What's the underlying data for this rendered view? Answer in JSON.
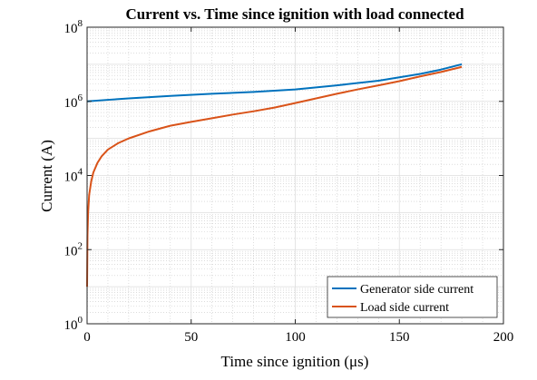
{
  "chart_data": {
    "type": "line",
    "title": "Current vs. Time since ignition with load connected",
    "xlabel": "Time since ignition (μs)",
    "ylabel": "Current (A)",
    "xlim": [
      0,
      200
    ],
    "ylim_log10": [
      0,
      8
    ],
    "y_scale": "log",
    "grid": true,
    "minor_grid": true,
    "legend_position": "bottom-right",
    "x_ticks": [
      "0",
      "50",
      "100",
      "150",
      "200"
    ],
    "y_ticks": [
      {
        "base": "10",
        "exp": "0"
      },
      {
        "base": "10",
        "exp": "2"
      },
      {
        "base": "10",
        "exp": "4"
      },
      {
        "base": "10",
        "exp": "6"
      },
      {
        "base": "10",
        "exp": "8"
      }
    ],
    "series": [
      {
        "name": "Generator side current",
        "color": "#0072BD",
        "x": [
          0,
          10,
          20,
          40,
          60,
          80,
          100,
          120,
          140,
          160,
          170,
          180
        ],
        "y": [
          1000000,
          1100000,
          1200000,
          1400000,
          1600000,
          1800000,
          2100000,
          2700000,
          3600000,
          5500000,
          7200000,
          10000000
        ]
      },
      {
        "name": "Load side current",
        "color": "#D95319",
        "x": [
          0,
          0.2,
          0.5,
          1,
          2,
          3,
          5,
          7,
          10,
          15,
          20,
          30,
          40,
          50,
          60,
          70,
          80,
          90,
          100,
          110,
          120,
          130,
          140,
          150,
          160,
          170,
          180
        ],
        "y": [
          10,
          250,
          1000,
          3000,
          7000,
          12000,
          22000,
          33000,
          50000,
          75000,
          100000,
          155000,
          220000,
          280000,
          350000,
          440000,
          540000,
          680000,
          900000,
          1200000,
          1600000,
          2100000,
          2700000,
          3500000,
          4700000,
          6200000,
          8500000
        ]
      }
    ]
  }
}
